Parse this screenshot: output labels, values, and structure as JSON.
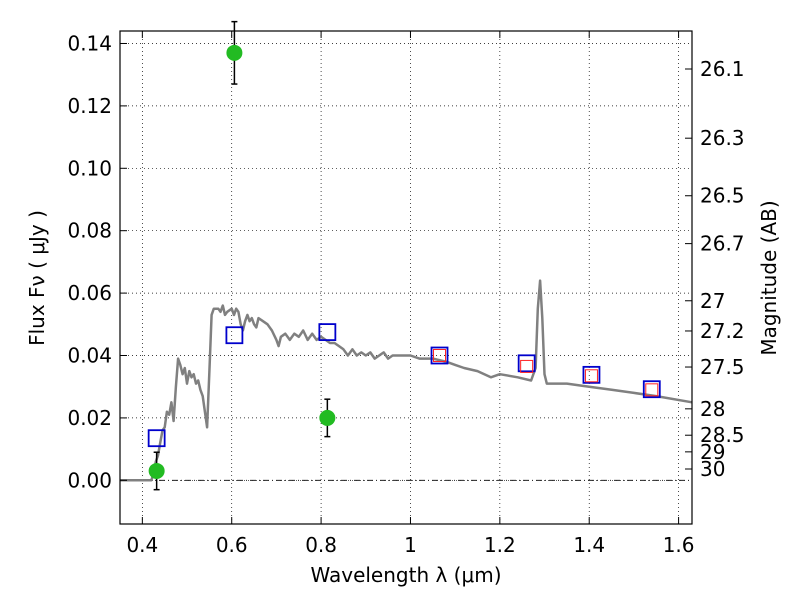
{
  "chart_data": {
    "type": "scatter",
    "xlabel": "Wavelength  λ (μm)",
    "ylabel": "Flux  Fν  ( μJy )",
    "y2label": "Magnitude (AB)",
    "xlim": [
      0.35,
      1.63
    ],
    "ylim": [
      -0.014,
      0.144
    ],
    "grid": true,
    "x_ticks": [
      {
        "value": 0.4,
        "label": "0.4"
      },
      {
        "value": 0.6,
        "label": "0.6"
      },
      {
        "value": 0.8,
        "label": "0.8"
      },
      {
        "value": 1.0,
        "label": "1"
      },
      {
        "value": 1.2,
        "label": "1.2"
      },
      {
        "value": 1.4,
        "label": "1.4"
      },
      {
        "value": 1.6,
        "label": "1.6"
      }
    ],
    "y_ticks": [
      {
        "value": 0.0,
        "label": "0.00"
      },
      {
        "value": 0.02,
        "label": "0.02"
      },
      {
        "value": 0.04,
        "label": "0.04"
      },
      {
        "value": 0.06,
        "label": "0.06"
      },
      {
        "value": 0.08,
        "label": "0.08"
      },
      {
        "value": 0.1,
        "label": "0.10"
      },
      {
        "value": 0.12,
        "label": "0.12"
      },
      {
        "value": 0.14,
        "label": "0.14"
      }
    ],
    "mag_ticks": [
      {
        "value": 26.1,
        "label": "26.1"
      },
      {
        "value": 26.3,
        "label": "26.3"
      },
      {
        "value": 26.5,
        "label": "26.5"
      },
      {
        "value": 26.7,
        "label": "26.7"
      },
      {
        "value": 27.0,
        "label": "27"
      },
      {
        "value": 27.2,
        "label": "27.2"
      },
      {
        "value": 27.5,
        "label": "27.5"
      },
      {
        "value": 28.0,
        "label": "28"
      },
      {
        "value": 28.5,
        "label": "28.5"
      },
      {
        "value": 29.0,
        "label": "29"
      },
      {
        "value": 30.0,
        "label": "30"
      }
    ],
    "series": [
      {
        "type": "line",
        "color": "#808080",
        "points": [
          [
            0.35,
            0.0
          ],
          [
            0.42,
            0.0
          ],
          [
            0.425,
            0.002
          ],
          [
            0.43,
            0.006
          ],
          [
            0.435,
            0.008
          ],
          [
            0.44,
            0.012
          ],
          [
            0.445,
            0.016
          ],
          [
            0.45,
            0.017
          ],
          [
            0.455,
            0.022
          ],
          [
            0.46,
            0.021
          ],
          [
            0.465,
            0.025
          ],
          [
            0.47,
            0.019
          ],
          [
            0.475,
            0.03
          ],
          [
            0.48,
            0.039
          ],
          [
            0.485,
            0.037
          ],
          [
            0.49,
            0.034
          ],
          [
            0.495,
            0.036
          ],
          [
            0.5,
            0.031
          ],
          [
            0.505,
            0.035
          ],
          [
            0.51,
            0.033
          ],
          [
            0.515,
            0.034
          ],
          [
            0.52,
            0.031
          ],
          [
            0.525,
            0.032
          ],
          [
            0.53,
            0.029
          ],
          [
            0.535,
            0.027
          ],
          [
            0.54,
            0.022
          ],
          [
            0.545,
            0.017
          ],
          [
            0.55,
            0.035
          ],
          [
            0.555,
            0.053
          ],
          [
            0.56,
            0.055
          ],
          [
            0.57,
            0.055
          ],
          [
            0.575,
            0.054
          ],
          [
            0.58,
            0.056
          ],
          [
            0.585,
            0.053
          ],
          [
            0.59,
            0.054
          ],
          [
            0.6,
            0.055
          ],
          [
            0.605,
            0.053
          ],
          [
            0.61,
            0.055
          ],
          [
            0.615,
            0.054
          ],
          [
            0.62,
            0.05
          ],
          [
            0.625,
            0.048
          ],
          [
            0.63,
            0.051
          ],
          [
            0.635,
            0.053
          ],
          [
            0.64,
            0.051
          ],
          [
            0.645,
            0.052
          ],
          [
            0.65,
            0.05
          ],
          [
            0.655,
            0.049
          ],
          [
            0.66,
            0.052
          ],
          [
            0.67,
            0.051
          ],
          [
            0.68,
            0.05
          ],
          [
            0.69,
            0.048
          ],
          [
            0.7,
            0.045
          ],
          [
            0.705,
            0.043
          ],
          [
            0.71,
            0.046
          ],
          [
            0.72,
            0.047
          ],
          [
            0.73,
            0.045
          ],
          [
            0.74,
            0.047
          ],
          [
            0.75,
            0.046
          ],
          [
            0.76,
            0.048
          ],
          [
            0.77,
            0.045
          ],
          [
            0.78,
            0.047
          ],
          [
            0.79,
            0.045
          ],
          [
            0.8,
            0.046
          ],
          [
            0.81,
            0.045
          ],
          [
            0.82,
            0.044
          ],
          [
            0.83,
            0.044
          ],
          [
            0.84,
            0.043
          ],
          [
            0.85,
            0.042
          ],
          [
            0.86,
            0.04
          ],
          [
            0.87,
            0.042
          ],
          [
            0.88,
            0.04
          ],
          [
            0.89,
            0.041
          ],
          [
            0.9,
            0.04
          ],
          [
            0.91,
            0.041
          ],
          [
            0.92,
            0.039
          ],
          [
            0.93,
            0.04
          ],
          [
            0.94,
            0.041
          ],
          [
            0.95,
            0.039
          ],
          [
            0.96,
            0.04
          ],
          [
            0.98,
            0.04
          ],
          [
            1.0,
            0.04
          ],
          [
            1.02,
            0.039
          ],
          [
            1.05,
            0.039
          ],
          [
            1.08,
            0.038
          ],
          [
            1.1,
            0.037
          ],
          [
            1.12,
            0.036
          ],
          [
            1.15,
            0.035
          ],
          [
            1.18,
            0.033
          ],
          [
            1.2,
            0.034
          ],
          [
            1.24,
            0.033
          ],
          [
            1.27,
            0.032
          ],
          [
            1.28,
            0.036
          ],
          [
            1.285,
            0.055
          ],
          [
            1.29,
            0.064
          ],
          [
            1.295,
            0.052
          ],
          [
            1.3,
            0.034
          ],
          [
            1.305,
            0.031
          ],
          [
            1.35,
            0.031
          ],
          [
            1.4,
            0.03
          ],
          [
            1.45,
            0.029
          ],
          [
            1.5,
            0.028
          ],
          [
            1.55,
            0.027
          ],
          [
            1.63,
            0.025
          ]
        ]
      },
      {
        "type": "points",
        "marker": "circle",
        "color": "#22bb22",
        "points": [
          {
            "x": 0.432,
            "y": 0.003,
            "err": 0.006
          },
          {
            "x": 0.606,
            "y": 0.137,
            "err": 0.01
          },
          {
            "x": 0.814,
            "y": 0.02,
            "err": 0.006
          }
        ]
      },
      {
        "type": "points",
        "marker": "square",
        "color": "#0000cc",
        "points": [
          {
            "x": 0.432,
            "y": 0.0135
          },
          {
            "x": 0.606,
            "y": 0.0465
          },
          {
            "x": 0.814,
            "y": 0.0475
          },
          {
            "x": 1.065,
            "y": 0.04
          },
          {
            "x": 1.26,
            "y": 0.0375
          },
          {
            "x": 1.405,
            "y": 0.0338
          },
          {
            "x": 1.54,
            "y": 0.0292
          }
        ]
      },
      {
        "type": "points",
        "marker": "square",
        "color": "#ff2222",
        "points": [
          {
            "x": 1.065,
            "y": 0.04
          },
          {
            "x": 1.26,
            "y": 0.0365
          },
          {
            "x": 1.405,
            "y": 0.0335
          },
          {
            "x": 1.54,
            "y": 0.029
          }
        ]
      }
    ]
  }
}
